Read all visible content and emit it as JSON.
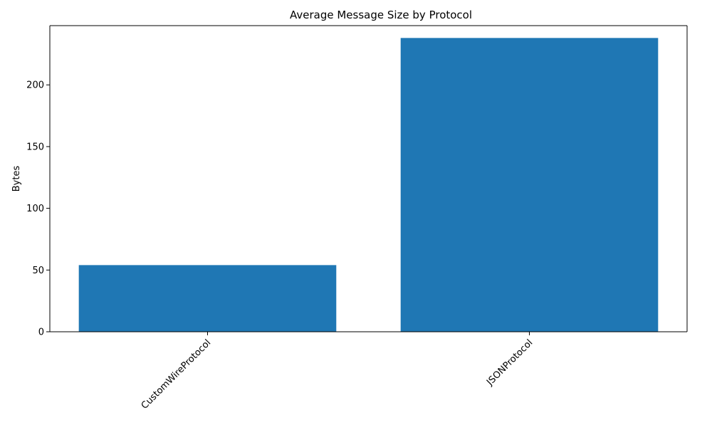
{
  "chart_data": {
    "type": "bar",
    "title": "Average Message Size by Protocol",
    "xlabel": "",
    "ylabel": "Bytes",
    "categories": [
      "CustomWireProtocol",
      "JSONProtocol"
    ],
    "values": [
      54,
      238
    ],
    "ylim": [
      0,
      248
    ],
    "yticks": [
      0,
      50,
      100,
      150,
      200
    ],
    "ytick_labels": [
      "0",
      "50",
      "100",
      "150",
      "200"
    ],
    "grid": false,
    "bar_color": "#1f77b4",
    "axis_color": "#000000"
  }
}
